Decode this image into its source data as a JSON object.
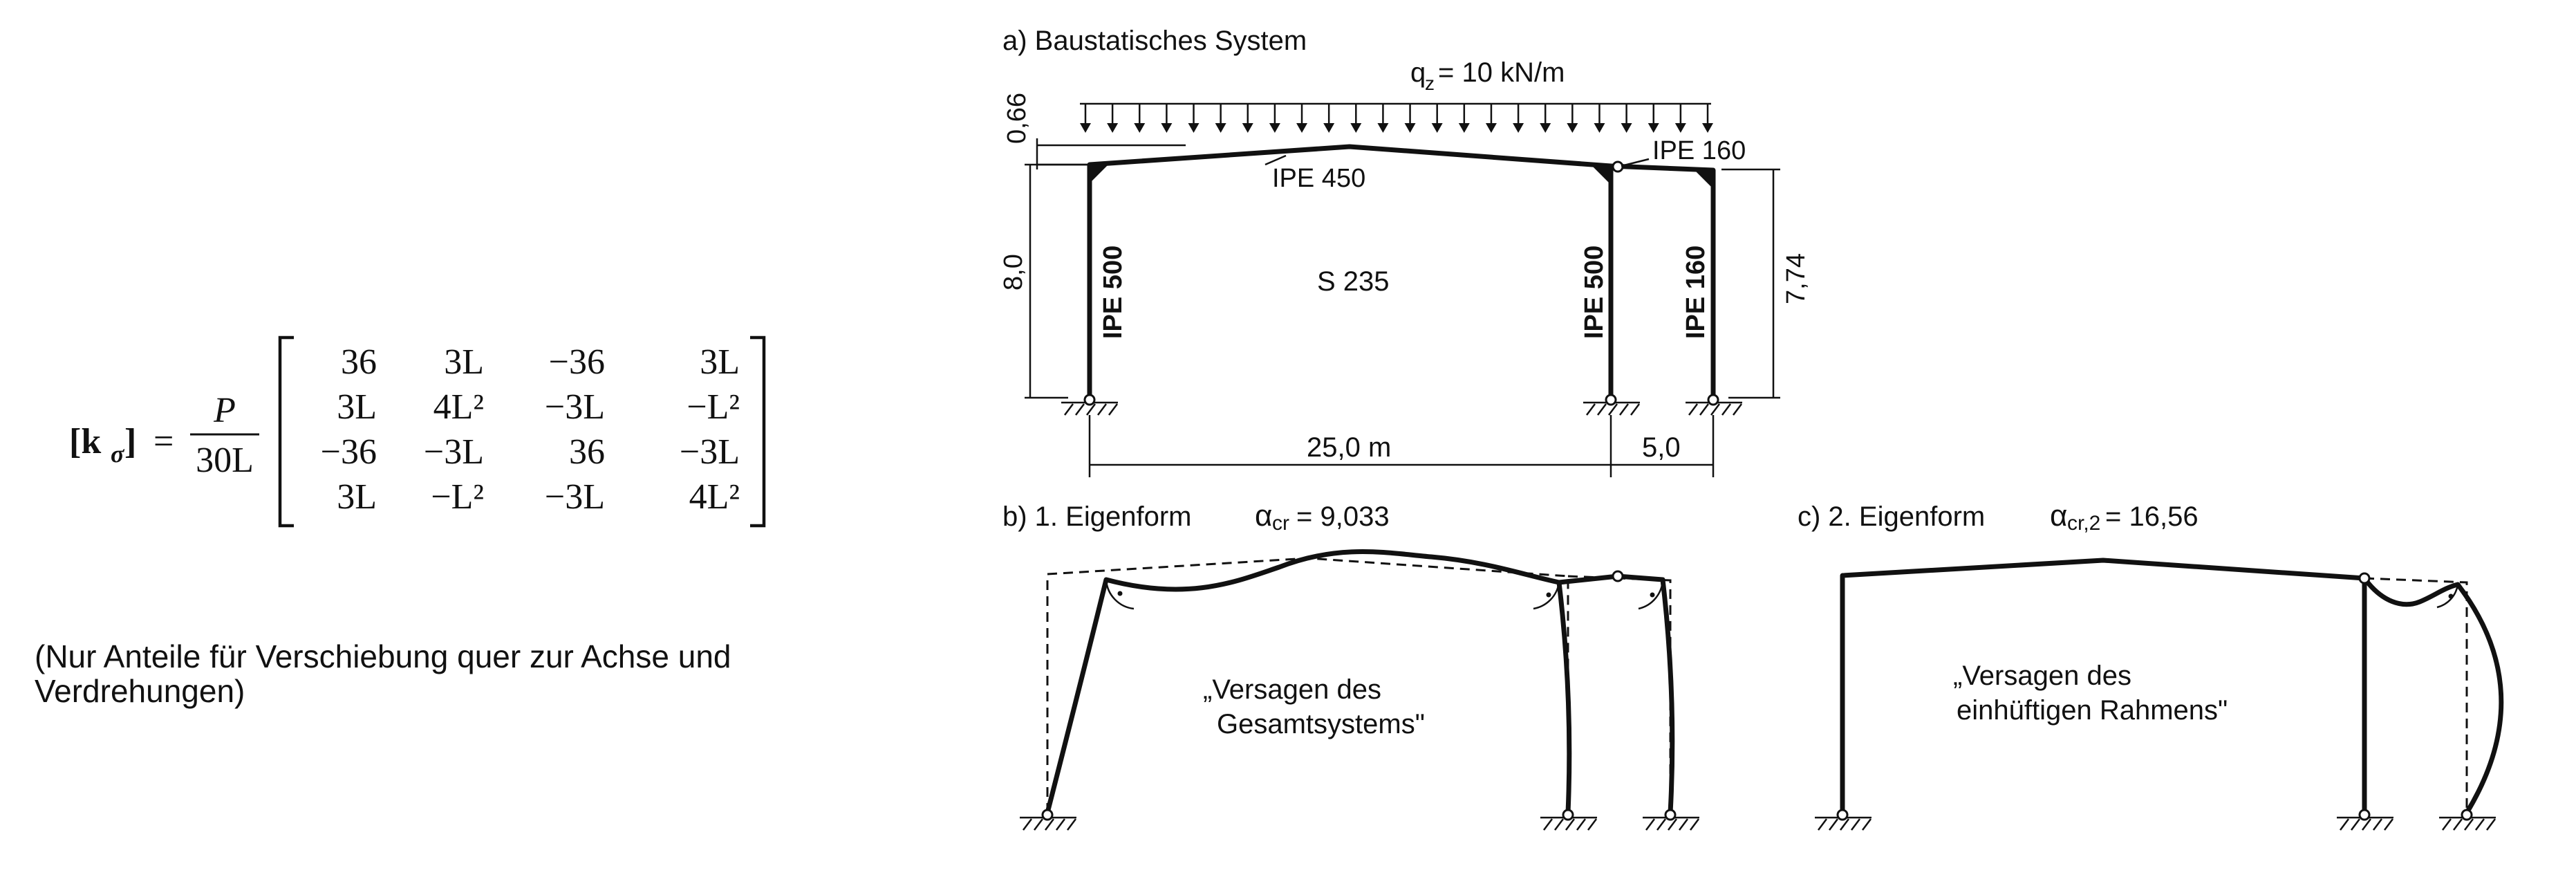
{
  "matrix": {
    "lhs": "[k",
    "lhs_sub": "σ",
    "lhs_close": "]",
    "equals": "=",
    "numerator": "P",
    "denominator": "30L",
    "rows": [
      [
        "36",
        "3L",
        "−36",
        "3L"
      ],
      [
        "3L",
        "4L²",
        "−3L",
        "−L²"
      ],
      [
        "−36",
        "−3L",
        "36",
        "−3L"
      ],
      [
        "3L",
        "−L²",
        "−3L",
        "4L²"
      ]
    ]
  },
  "note": {
    "line1": "(Nur Anteile für Verschiebung quer zur Achse und",
    "line2": "Verdrehungen)"
  },
  "panel_a": {
    "title": "a)  Baustatisches System",
    "load_label": "q",
    "load_sub": "z",
    "load_value": "= 10 kN/m",
    "dim_roof": "0,66",
    "dim_height_left": "8,0",
    "dim_height_right": "7,74",
    "dim_span_main": "25,0 m",
    "dim_span_small": "5,0",
    "beam_main": "IPE 450",
    "beam_small": "IPE 160",
    "col_left": "IPE 500",
    "col_mid": "IPE 500",
    "col_right": "IPE 160",
    "material": "S 235"
  },
  "panel_b": {
    "title": "b)  1. Eigenform",
    "alpha_sym": "α",
    "alpha_sub": "cr",
    "alpha_value": " = 9,033",
    "caption1": "„Versagen des",
    "caption2": "Gesamtsystems\""
  },
  "panel_c": {
    "title": "c)  2. Eigenform",
    "alpha_sym": "α",
    "alpha_sub": "cr,2",
    "alpha_value": " = 16,56",
    "caption1": "„Versagen des",
    "caption2": "einhüftigen Rahmens\""
  }
}
